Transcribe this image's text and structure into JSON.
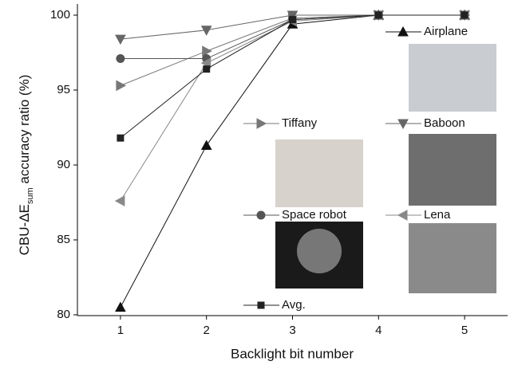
{
  "chart_data": {
    "type": "line",
    "x_label": "Backlight bit number",
    "y_label": "CBU-ΔE",
    "y_label_sub": "sum",
    "y_label_end": " accuracy ratio (%)",
    "x": [
      1,
      2,
      3,
      4,
      5
    ],
    "xlim": [
      0.5,
      5.5
    ],
    "xticks": [
      1,
      2,
      3,
      4,
      5
    ],
    "ylim": [
      80,
      100
    ],
    "yticks": [
      80,
      85,
      90,
      95,
      100
    ],
    "series": [
      {
        "name": "Airplane",
        "color": "#111111",
        "marker": "triangle-up",
        "values": [
          80.5,
          91.3,
          99.4,
          100,
          100
        ]
      },
      {
        "name": "Tiffany",
        "color": "#777777",
        "marker": "triangle-right",
        "values": [
          95.3,
          97.6,
          99.8,
          100,
          100
        ]
      },
      {
        "name": "Baboon",
        "color": "#666666",
        "marker": "triangle-down",
        "values": [
          98.4,
          99.0,
          100,
          100,
          100
        ]
      },
      {
        "name": "Space robot",
        "color": "#555555",
        "marker": "circle",
        "values": [
          97.1,
          97.1,
          99.7,
          100,
          100
        ]
      },
      {
        "name": "Lena",
        "color": "#888888",
        "marker": "triangle-left",
        "values": [
          87.6,
          96.8,
          99.6,
          100,
          100
        ]
      },
      {
        "name": "Avg.",
        "color": "#222222",
        "marker": "square",
        "values": [
          91.8,
          96.4,
          99.7,
          100,
          100
        ]
      }
    ]
  }
}
